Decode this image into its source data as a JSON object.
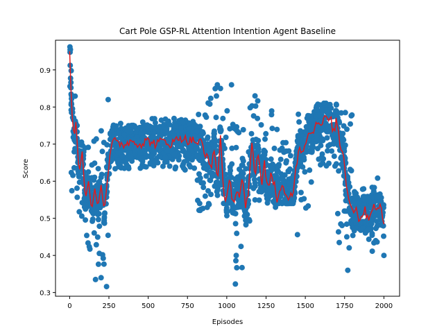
{
  "chart_data": {
    "type": "scatter",
    "title": "Cart Pole GSP-RL Attention Intention Agent Baseline",
    "xlabel": "Episodes",
    "ylabel": "Score",
    "xlim": [
      -90,
      2100
    ],
    "ylim": [
      0.29,
      0.98
    ],
    "xticks": [
      0,
      250,
      500,
      750,
      1000,
      1250,
      1500,
      1750,
      2000
    ],
    "yticks": [
      0.3,
      0.4,
      0.5,
      0.6,
      0.7,
      0.8,
      0.9
    ],
    "grid": false,
    "colors": {
      "scatter": "#1f77b4",
      "line": "#e31a1c"
    },
    "series": [
      {
        "kind": "scatter-bands",
        "note_segments": [
          [
            0,
            12,
            0.58,
            0.97
          ],
          [
            12,
            40,
            0.55,
            0.83
          ],
          [
            40,
            100,
            0.45,
            0.75
          ],
          [
            100,
            160,
            0.4,
            0.72
          ],
          [
            160,
            245,
            0.33,
            0.75
          ],
          [
            245,
            300,
            0.62,
            0.76
          ],
          [
            300,
            500,
            0.63,
            0.76
          ],
          [
            500,
            800,
            0.63,
            0.77
          ],
          [
            800,
            880,
            0.52,
            0.78
          ],
          [
            880,
            960,
            0.52,
            0.86
          ],
          [
            960,
            1050,
            0.5,
            0.8
          ],
          [
            1050,
            1100,
            0.33,
            0.79
          ],
          [
            1100,
            1200,
            0.48,
            0.83
          ],
          [
            1200,
            1320,
            0.53,
            0.79
          ],
          [
            1320,
            1450,
            0.54,
            0.71
          ],
          [
            1450,
            1560,
            0.52,
            0.79
          ],
          [
            1560,
            1700,
            0.64,
            0.81
          ],
          [
            1700,
            1800,
            0.4,
            0.79
          ],
          [
            1800,
            1900,
            0.45,
            0.58
          ],
          [
            1900,
            2000,
            0.4,
            0.61
          ]
        ],
        "outliers": [
          [
            2,
            0.962
          ],
          [
            5,
            0.955
          ],
          [
            10,
            0.898
          ],
          [
            8,
            0.852
          ],
          [
            245,
            0.82
          ],
          [
            235,
            0.316
          ],
          [
            200,
            0.34
          ],
          [
            1055,
            0.323
          ],
          [
            1030,
            0.86
          ],
          [
            960,
            0.85
          ],
          [
            1060,
            0.4
          ],
          [
            1180,
            0.83
          ],
          [
            1450,
            0.456
          ],
          [
            1770,
            0.36
          ],
          [
            2000,
            0.4
          ],
          [
            940,
            0.86
          ]
        ]
      },
      {
        "kind": "line",
        "x": [
          0,
          5,
          10,
          20,
          30,
          40,
          60,
          80,
          100,
          120,
          140,
          160,
          180,
          200,
          220,
          240,
          250,
          260,
          280,
          300,
          350,
          400,
          450,
          500,
          550,
          600,
          650,
          700,
          750,
          800,
          820,
          840,
          860,
          880,
          900,
          920,
          940,
          960,
          980,
          1000,
          1020,
          1040,
          1060,
          1080,
          1100,
          1120,
          1140,
          1160,
          1180,
          1200,
          1220,
          1240,
          1260,
          1280,
          1300,
          1320,
          1340,
          1360,
          1380,
          1400,
          1420,
          1440,
          1460,
          1480,
          1500,
          1520,
          1540,
          1560,
          1580,
          1600,
          1620,
          1640,
          1660,
          1680,
          1700,
          1720,
          1740,
          1760,
          1780,
          1800,
          1820,
          1840,
          1860,
          1880,
          1900,
          1920,
          1940,
          1960,
          1980,
          2000
        ],
        "y": [
          0.95,
          0.9,
          0.82,
          0.75,
          0.72,
          0.76,
          0.62,
          0.68,
          0.55,
          0.6,
          0.52,
          0.58,
          0.53,
          0.59,
          0.52,
          0.6,
          0.64,
          0.69,
          0.71,
          0.7,
          0.7,
          0.71,
          0.7,
          0.71,
          0.7,
          0.71,
          0.7,
          0.72,
          0.71,
          0.71,
          0.7,
          0.71,
          0.66,
          0.68,
          0.62,
          0.69,
          0.6,
          0.72,
          0.57,
          0.55,
          0.6,
          0.54,
          0.58,
          0.56,
          0.61,
          0.52,
          0.58,
          0.7,
          0.62,
          0.68,
          0.59,
          0.65,
          0.57,
          0.62,
          0.6,
          0.55,
          0.57,
          0.58,
          0.55,
          0.56,
          0.57,
          0.63,
          0.7,
          0.68,
          0.7,
          0.74,
          0.72,
          0.75,
          0.77,
          0.74,
          0.78,
          0.76,
          0.77,
          0.73,
          0.77,
          0.7,
          0.68,
          0.6,
          0.55,
          0.52,
          0.53,
          0.5,
          0.51,
          0.52,
          0.5,
          0.52,
          0.54,
          0.52,
          0.53,
          0.49
        ]
      }
    ]
  }
}
